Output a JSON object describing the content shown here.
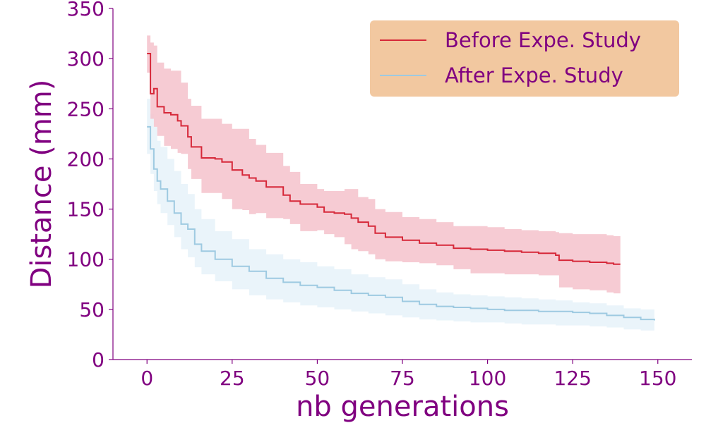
{
  "chart_data": {
    "type": "line",
    "title": "",
    "xlabel": "nb generations",
    "ylabel": "Distance (mm)",
    "xlim": [
      -10,
      160
    ],
    "ylim": [
      0,
      350
    ],
    "x_ticks": [
      0,
      25,
      50,
      75,
      100,
      125,
      150
    ],
    "y_ticks": [
      0,
      50,
      100,
      150,
      200,
      250,
      300,
      350
    ],
    "grid": false,
    "legend_position": "top-right",
    "colors": {
      "text": "#800080",
      "axis": "#800080",
      "legend_background": "#f2c8a0",
      "before_line": "#d62839",
      "before_band": "#f4c2cb",
      "after_line": "#9ecae1",
      "after_band": "#e3f0f8"
    },
    "series": [
      {
        "name": "Before Expe. Study",
        "color": "#d62839",
        "x": [
          0,
          1,
          2,
          3,
          5,
          7,
          9,
          10,
          12,
          13,
          16,
          20,
          22,
          25,
          28,
          30,
          32,
          35,
          40,
          42,
          45,
          50,
          52,
          55,
          58,
          60,
          62,
          65,
          67,
          70,
          75,
          80,
          85,
          90,
          95,
          100,
          105,
          110,
          115,
          120,
          121,
          125,
          130,
          135,
          137,
          139
        ],
        "y": [
          305,
          265,
          270,
          252,
          246,
          244,
          238,
          233,
          222,
          212,
          201,
          200,
          197,
          189,
          184,
          181,
          178,
          172,
          164,
          158,
          155,
          152,
          147,
          146,
          145,
          141,
          137,
          133,
          126,
          122,
          119,
          116,
          114,
          111,
          110,
          109,
          108,
          107,
          106,
          104,
          99,
          98,
          97,
          96,
          95,
          95
        ],
        "upper": [
          323,
          316,
          313,
          296,
          290,
          288,
          288,
          276,
          260,
          253,
          240,
          240,
          235,
          230,
          230,
          220,
          214,
          206,
          193,
          187,
          175,
          170,
          168,
          168,
          170,
          170,
          162,
          160,
          150,
          147,
          142,
          140,
          137,
          133,
          133,
          132,
          130,
          129,
          128,
          127,
          126,
          125,
          125,
          124,
          123,
          123
        ],
        "lower": [
          286,
          240,
          232,
          223,
          213,
          210,
          206,
          205,
          190,
          180,
          166,
          166,
          160,
          150,
          149,
          145,
          146,
          141,
          140,
          135,
          128,
          129,
          125,
          122,
          115,
          110,
          108,
          105,
          100,
          98,
          97,
          96,
          94,
          90,
          86,
          86,
          85,
          85,
          84,
          84,
          72,
          70,
          69,
          67,
          66,
          66
        ]
      },
      {
        "name": "After Expe. Study",
        "color": "#9ecae1",
        "x": [
          0,
          1,
          2,
          3,
          4,
          6,
          8,
          10,
          12,
          14,
          16,
          20,
          25,
          30,
          35,
          40,
          45,
          50,
          55,
          60,
          65,
          70,
          75,
          80,
          85,
          90,
          95,
          100,
          105,
          110,
          115,
          120,
          125,
          130,
          135,
          140,
          145,
          149
        ],
        "y": [
          232,
          210,
          190,
          178,
          170,
          158,
          146,
          135,
          130,
          115,
          108,
          100,
          93,
          88,
          81,
          77,
          74,
          72,
          69,
          66,
          64,
          62,
          58,
          55,
          53,
          52,
          51,
          50,
          49,
          49,
          48,
          48,
          47,
          46,
          44,
          42,
          40,
          39
        ],
        "upper": [
          260,
          245,
          232,
          218,
          212,
          200,
          188,
          175,
          165,
          150,
          140,
          128,
          120,
          110,
          105,
          100,
          97,
          93,
          90,
          85,
          82,
          80,
          75,
          70,
          67,
          65,
          64,
          63,
          62,
          61,
          60,
          59,
          57,
          56,
          54,
          51,
          50,
          49
        ],
        "lower": [
          205,
          185,
          168,
          155,
          146,
          134,
          122,
          110,
          102,
          92,
          85,
          78,
          70,
          64,
          60,
          57,
          54,
          52,
          50,
          48,
          46,
          44,
          42,
          40,
          39,
          38,
          37,
          37,
          36,
          35,
          35,
          34,
          34,
          33,
          32,
          30,
          29,
          28
        ]
      }
    ]
  }
}
